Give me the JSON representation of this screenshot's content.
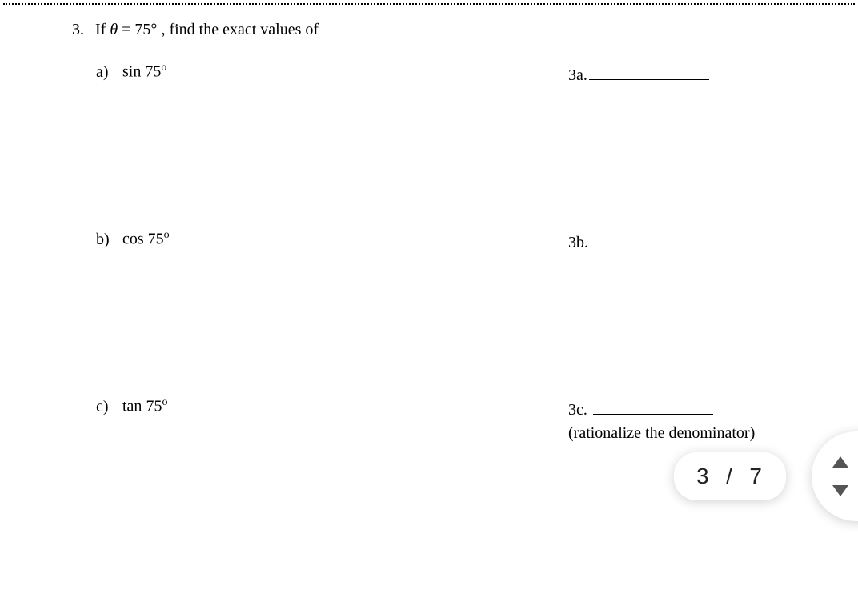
{
  "question": {
    "number": "3.",
    "stem_prefix": "If ",
    "stem_var": "θ",
    "stem_eq": " = 75°",
    "stem_suffix": " , find the exact values of"
  },
  "parts": [
    {
      "letter": "a)",
      "func": "sin",
      "arg": "75",
      "ans_label": "3a."
    },
    {
      "letter": "b)",
      "func": "cos",
      "arg": "75",
      "ans_label": "3b."
    },
    {
      "letter": "c)",
      "func": "tan",
      "arg": "75",
      "ans_label": "3c.",
      "note": "(rationalize the denominator)"
    }
  ],
  "pager": {
    "current": "3",
    "sep": "/",
    "total": "7"
  }
}
